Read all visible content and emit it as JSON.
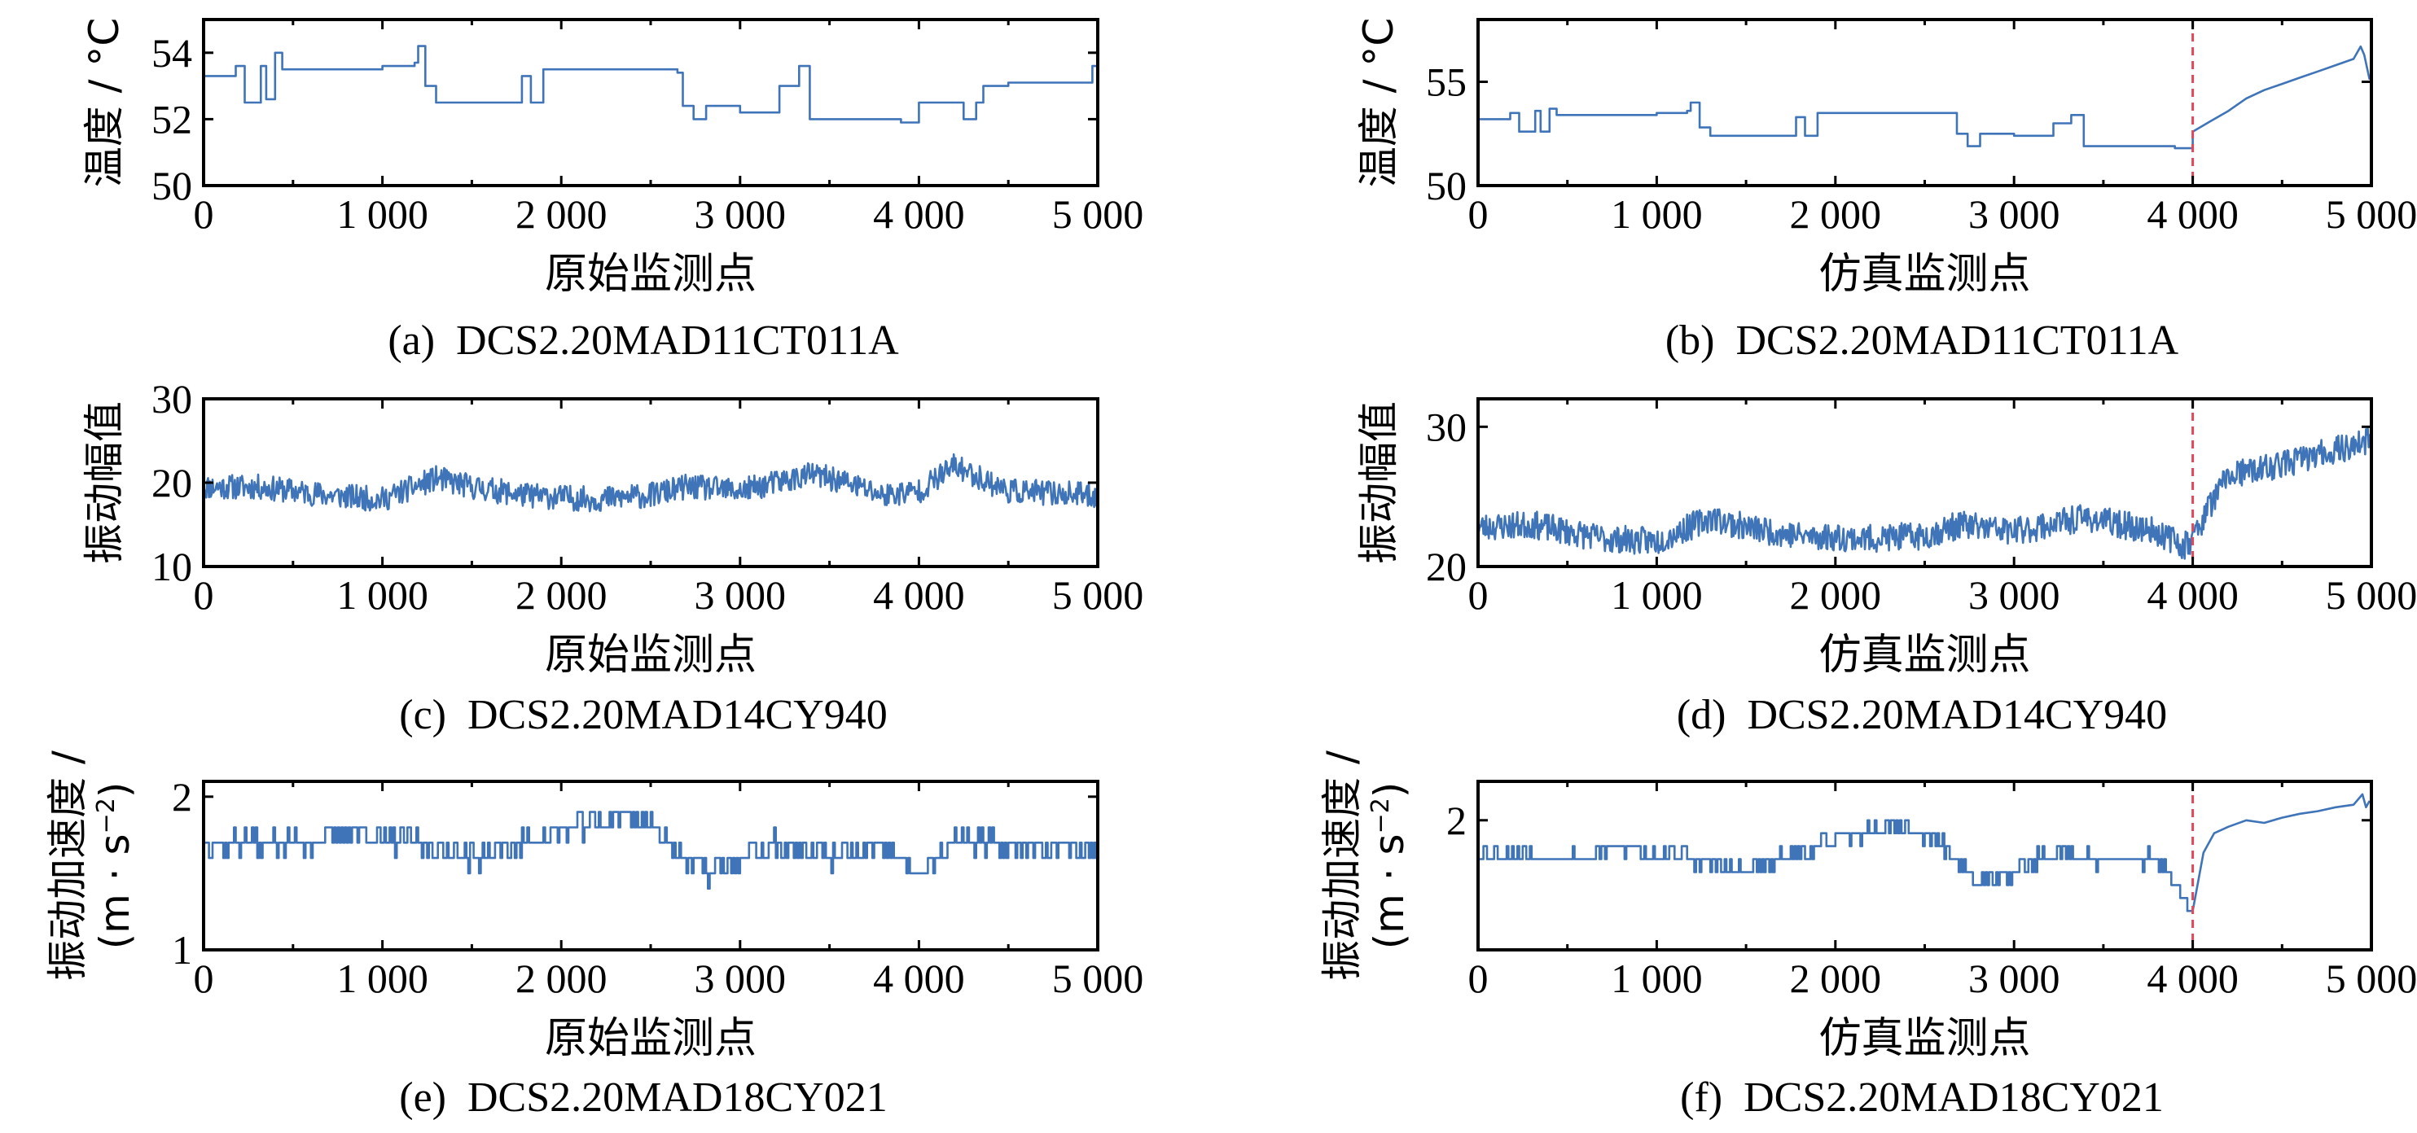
{
  "chart_data": [
    {
      "id": "a",
      "type": "line",
      "caption": "(a)  DCS2.20MAD11CT011A",
      "xlabel": "原始监测点",
      "ylabel": "温度 / °C",
      "xlim": [
        0,
        5000
      ],
      "ylim": [
        50,
        55
      ],
      "xticks": [
        0,
        1000,
        2000,
        3000,
        4000,
        5000
      ],
      "xtick_labels": [
        "0",
        "1 000",
        "2 000",
        "3 000",
        "4 000",
        "5 000"
      ],
      "yticks": [
        50,
        52,
        54
      ],
      "ytick_labels": [
        "50",
        "52",
        "54"
      ],
      "grid": false,
      "color": "#3f74b8",
      "series": [
        {
          "style": "step",
          "x": [
            0,
            180,
            230,
            320,
            350,
            400,
            440,
            1000,
            1180,
            1200,
            1240,
            1300,
            1700,
            1780,
            1830,
            1900,
            2650,
            2680,
            2740,
            2810,
            3000,
            3220,
            3330,
            3390,
            3800,
            3900,
            4000,
            4200,
            4250,
            4320,
            4360,
            4500,
            4900,
            4970,
            5000
          ],
          "y": [
            53.3,
            53.6,
            52.5,
            53.6,
            52.6,
            54.0,
            53.5,
            53.6,
            53.7,
            54.2,
            53.0,
            52.5,
            52.5,
            53.3,
            52.5,
            53.5,
            53.4,
            52.4,
            52.0,
            52.4,
            52.2,
            53.0,
            53.6,
            52.0,
            52.0,
            51.9,
            52.5,
            52.5,
            52.0,
            52.5,
            53.0,
            53.1,
            53.1,
            53.6,
            52.0
          ]
        }
      ]
    },
    {
      "id": "b",
      "type": "line",
      "caption": "(b)  DCS2.20MAD11CT011A",
      "xlabel": "仿真监测点",
      "ylabel": "温度 / °C",
      "xlim": [
        0,
        5000
      ],
      "ylim": [
        50,
        58
      ],
      "xticks": [
        0,
        1000,
        2000,
        3000,
        4000,
        5000
      ],
      "xtick_labels": [
        "0",
        "1 000",
        "2 000",
        "3 000",
        "4 000",
        "5 000"
      ],
      "yticks": [
        50,
        55
      ],
      "ytick_labels": [
        "50",
        "55"
      ],
      "grid": false,
      "color": "#3f74b8",
      "change_point": 4000,
      "series": [
        {
          "style": "step",
          "x": [
            0,
            180,
            230,
            320,
            350,
            400,
            440,
            1000,
            1170,
            1190,
            1240,
            1300,
            1700,
            1780,
            1830,
            1900,
            2650,
            2680,
            2740,
            2810,
            3000,
            3220,
            3320,
            3390,
            3800,
            3900,
            4000
          ],
          "y": [
            53.2,
            53.5,
            52.6,
            53.6,
            52.6,
            53.7,
            53.4,
            53.5,
            53.6,
            54.0,
            52.8,
            52.4,
            52.4,
            53.3,
            52.4,
            53.5,
            53.5,
            52.5,
            51.9,
            52.5,
            52.4,
            53.0,
            53.4,
            51.9,
            51.9,
            51.8,
            52.5
          ]
        },
        {
          "style": "line",
          "x": [
            4000,
            4100,
            4200,
            4300,
            4400,
            4500,
            4600,
            4700,
            4800,
            4900,
            4940,
            4960,
            4990
          ],
          "y": [
            52.6,
            53.1,
            53.6,
            54.2,
            54.6,
            54.9,
            55.2,
            55.5,
            55.8,
            56.1,
            56.7,
            56.3,
            55.1
          ]
        }
      ]
    },
    {
      "id": "c",
      "type": "line",
      "caption": "(c)  DCS2.20MAD14CY940",
      "xlabel": "原始监测点",
      "ylabel": "振动幅值",
      "xlim": [
        0,
        5000
      ],
      "ylim": [
        10,
        30
      ],
      "xticks": [
        0,
        1000,
        2000,
        3000,
        4000,
        5000
      ],
      "xtick_labels": [
        "0",
        "1 000",
        "2 000",
        "3 000",
        "4 000",
        "5 000"
      ],
      "yticks": [
        10,
        20,
        30
      ],
      "ytick_labels": [
        "10",
        "20",
        "30"
      ],
      "grid": false,
      "color": "#3f74b8",
      "series": [
        {
          "style": "noisy",
          "noise": 1.5,
          "seed": 11,
          "step": 5,
          "baseline_x": [
            0,
            300,
            700,
            1000,
            1300,
            1500,
            1800,
            2200,
            2500,
            2700,
            3000,
            3200,
            3400,
            3600,
            3800,
            4000,
            4200,
            4500,
            5000
          ],
          "baseline_y": [
            19.5,
            19.5,
            18.5,
            18.0,
            20.5,
            19.5,
            18.5,
            18.0,
            18.5,
            19.5,
            19.0,
            20.0,
            21.0,
            20.0,
            18.5,
            19.0,
            22.0,
            19.0,
            18.5
          ]
        }
      ]
    },
    {
      "id": "d",
      "type": "line",
      "caption": "(d)  DCS2.20MAD14CY940",
      "xlabel": "仿真监测点",
      "ylabel": "振动幅值",
      "xlim": [
        0,
        5000
      ],
      "ylim": [
        20,
        32
      ],
      "xticks": [
        0,
        1000,
        2000,
        3000,
        4000,
        5000
      ],
      "xtick_labels": [
        "0",
        "1 000",
        "2 000",
        "3 000",
        "4 000",
        "5 000"
      ],
      "yticks": [
        20,
        30
      ],
      "ytick_labels": [
        "20",
        "30"
      ],
      "grid": false,
      "color": "#3f74b8",
      "change_point": 4000,
      "series": [
        {
          "style": "noisy",
          "noise": 1.0,
          "seed": 23,
          "step": 5,
          "baseline_x": [
            0,
            300,
            700,
            1000,
            1300,
            1500,
            1800,
            2200,
            2500,
            2700,
            3000,
            3200,
            3400,
            3600,
            3800,
            3950,
            4000,
            4100,
            4200,
            4400,
            4700,
            5000
          ],
          "baseline_y": [
            22.8,
            23.0,
            22.0,
            21.8,
            23.5,
            22.8,
            22.2,
            22.0,
            22.2,
            23.0,
            22.5,
            23.0,
            23.5,
            23.0,
            22.5,
            21.5,
            22.0,
            24.5,
            26.5,
            27.0,
            28.0,
            29.0
          ]
        }
      ]
    },
    {
      "id": "e",
      "type": "line",
      "caption": "(e)  DCS2.20MAD18CY021",
      "xlabel": "原始监测点",
      "ylabel": "振动加速度 /",
      "ylabel2": "(m · s",
      "ylabel2_sup": "−2",
      "ylabel2_tail": ")",
      "xlim": [
        0,
        5000
      ],
      "ylim": [
        1,
        2.1
      ],
      "xticks": [
        0,
        1000,
        2000,
        3000,
        4000,
        5000
      ],
      "xtick_labels": [
        "0",
        "1 000",
        "2 000",
        "3 000",
        "4 000",
        "5 000"
      ],
      "yticks": [
        1,
        2
      ],
      "ytick_labels": [
        "1",
        "2"
      ],
      "grid": false,
      "color": "#3f74b8",
      "series": [
        {
          "style": "quantized",
          "quantum": 0.1,
          "noise": 0.07,
          "seed": 37,
          "step": 10,
          "baseline_x": [
            0,
            600,
            800,
            1000,
            1200,
            1500,
            1800,
            2100,
            2400,
            2600,
            2800,
            3000,
            3200,
            3500,
            3800,
            4000,
            4200,
            4500,
            5000
          ],
          "baseline_y": [
            1.7,
            1.7,
            1.8,
            1.7,
            1.7,
            1.6,
            1.7,
            1.8,
            1.9,
            1.7,
            1.5,
            1.6,
            1.7,
            1.6,
            1.65,
            1.5,
            1.7,
            1.7,
            1.65
          ]
        }
      ]
    },
    {
      "id": "f",
      "type": "line",
      "caption": "(f)  DCS2.20MAD18CY021",
      "xlabel": "仿真监测点",
      "ylabel": "振动加速度 /",
      "ylabel2": "(m · s",
      "ylabel2_sup": "−2",
      "ylabel2_tail": ")",
      "xlim": [
        0,
        5000
      ],
      "ylim": [
        1,
        2.3
      ],
      "xticks": [
        0,
        1000,
        2000,
        3000,
        4000,
        5000
      ],
      "xtick_labels": [
        "0",
        "1 000",
        "2 000",
        "3 000",
        "4 000",
        "5 000"
      ],
      "yticks": [
        2
      ],
      "ytick_labels": [
        "2"
      ],
      "grid": false,
      "color": "#3f74b8",
      "change_point": 4000,
      "series": [
        {
          "style": "quantized",
          "quantum": 0.1,
          "noise": 0.06,
          "seed": 53,
          "step": 10,
          "baseline_x": [
            0,
            600,
            800,
            1000,
            1200,
            1500,
            1800,
            2100,
            2400,
            2600,
            2800,
            3000,
            3200,
            3500,
            3800,
            3950,
            4000
          ],
          "baseline_y": [
            1.75,
            1.7,
            1.8,
            1.75,
            1.7,
            1.6,
            1.75,
            1.9,
            1.95,
            1.8,
            1.5,
            1.6,
            1.75,
            1.7,
            1.7,
            1.4,
            1.3
          ]
        },
        {
          "style": "line",
          "x": [
            4000,
            4060,
            4120,
            4200,
            4300,
            4400,
            4500,
            4600,
            4700,
            4800,
            4900,
            4950,
            4970,
            4990
          ],
          "y": [
            1.3,
            1.75,
            1.9,
            1.95,
            2.0,
            1.98,
            2.02,
            2.05,
            2.07,
            2.1,
            2.12,
            2.2,
            2.1,
            2.15
          ]
        }
      ]
    }
  ]
}
